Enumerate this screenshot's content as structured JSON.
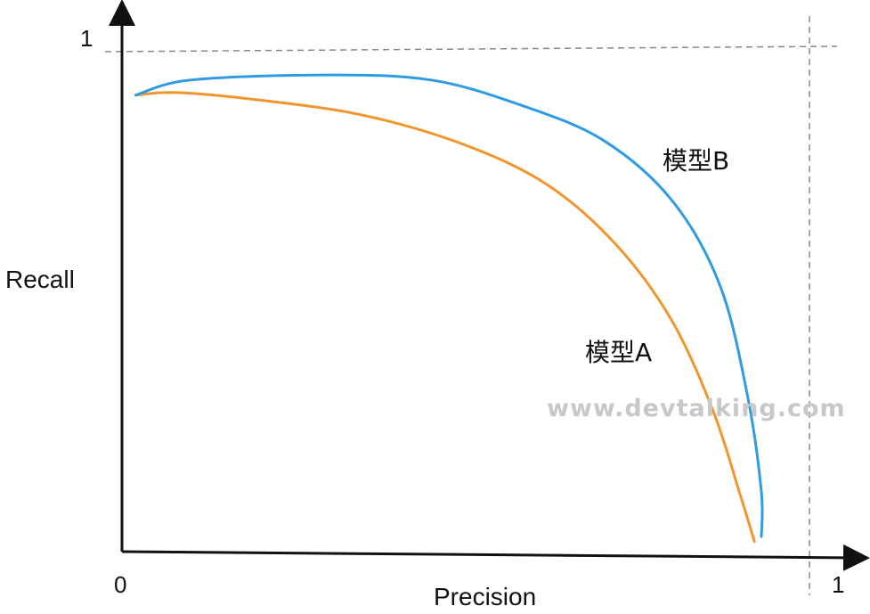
{
  "chart_data": {
    "type": "line",
    "xlabel": "Precision",
    "ylabel": "Recall",
    "xlim": [
      0,
      1
    ],
    "ylim": [
      0,
      1
    ],
    "x_ticks": [
      "0",
      "1"
    ],
    "y_ticks": [
      "1"
    ],
    "grid": false,
    "reference_lines": [
      {
        "axis": "x",
        "value": 1,
        "style": "dashed"
      },
      {
        "axis": "y",
        "value": 1,
        "style": "dashed"
      }
    ],
    "series": [
      {
        "name": "模型A",
        "color": "#f0962f",
        "points": [
          [
            0.02,
            0.91
          ],
          [
            0.08,
            0.915
          ],
          [
            0.2,
            0.9
          ],
          [
            0.35,
            0.87
          ],
          [
            0.5,
            0.81
          ],
          [
            0.62,
            0.73
          ],
          [
            0.72,
            0.61
          ],
          [
            0.8,
            0.46
          ],
          [
            0.86,
            0.28
          ],
          [
            0.9,
            0.11
          ],
          [
            0.92,
            0.02
          ]
        ]
      },
      {
        "name": "模型B",
        "color": "#2f9be0",
        "points": [
          [
            0.02,
            0.91
          ],
          [
            0.1,
            0.94
          ],
          [
            0.3,
            0.95
          ],
          [
            0.45,
            0.94
          ],
          [
            0.58,
            0.89
          ],
          [
            0.7,
            0.82
          ],
          [
            0.8,
            0.7
          ],
          [
            0.87,
            0.53
          ],
          [
            0.91,
            0.31
          ],
          [
            0.93,
            0.12
          ],
          [
            0.93,
            0.03
          ]
        ]
      }
    ]
  },
  "watermark": "www.devtalking.com"
}
